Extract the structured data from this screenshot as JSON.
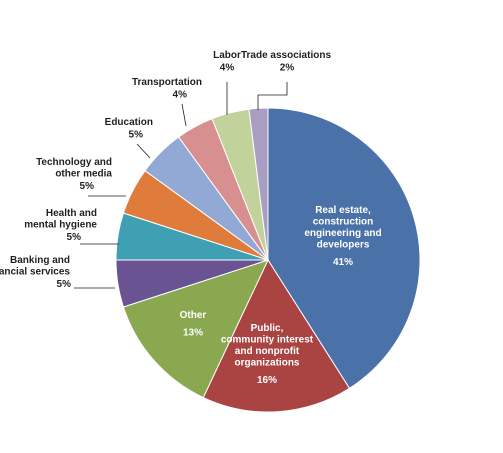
{
  "chart_data": {
    "type": "pie",
    "title": "",
    "slices": [
      {
        "label": "Real estate, construction engineering and developers",
        "label_lines": [
          "Real estate,",
          "construction",
          "engineering and",
          "developers"
        ],
        "value_label": "41%",
        "value": 41,
        "color": "#4a71a8"
      },
      {
        "label": "Public, community interest and nonprofit organizations",
        "label_lines": [
          "Public,",
          "community interest",
          "and nonprofit",
          "organizations"
        ],
        "value_label": "16%",
        "value": 16,
        "color": "#a94442"
      },
      {
        "label": "Other",
        "label_lines": [
          "Other"
        ],
        "value_label": "13%",
        "value": 13,
        "color": "#8aa84f"
      },
      {
        "label": "Banking and financial services",
        "label_lines": [
          "Banking and",
          "financial services"
        ],
        "value_label": "5%",
        "value": 5,
        "color": "#6a5393"
      },
      {
        "label": "Health and mental hygiene",
        "label_lines": [
          "Health and",
          "mental hygiene"
        ],
        "value_label": "5%",
        "value": 5,
        "color": "#3ea0b2"
      },
      {
        "label": "Technology and other media",
        "label_lines": [
          "Technology and",
          "other media"
        ],
        "value_label": "5%",
        "value": 5,
        "color": "#e07c3b"
      },
      {
        "label": "Education",
        "label_lines": [
          "Education"
        ],
        "value_label": "5%",
        "value": 5,
        "color": "#92a9d6"
      },
      {
        "label": "Transportation",
        "label_lines": [
          "Transportation"
        ],
        "value_label": "4%",
        "value": 4,
        "color": "#d88f8f"
      },
      {
        "label": "Labor",
        "label_lines": [
          "Labor"
        ],
        "value_label": "4%",
        "value": 4,
        "color": "#c2d29b"
      },
      {
        "label": "Trade associations",
        "label_lines": [
          "Trade associations"
        ],
        "value_label": "2%",
        "value": 2,
        "color": "#aa9dc2"
      }
    ]
  }
}
